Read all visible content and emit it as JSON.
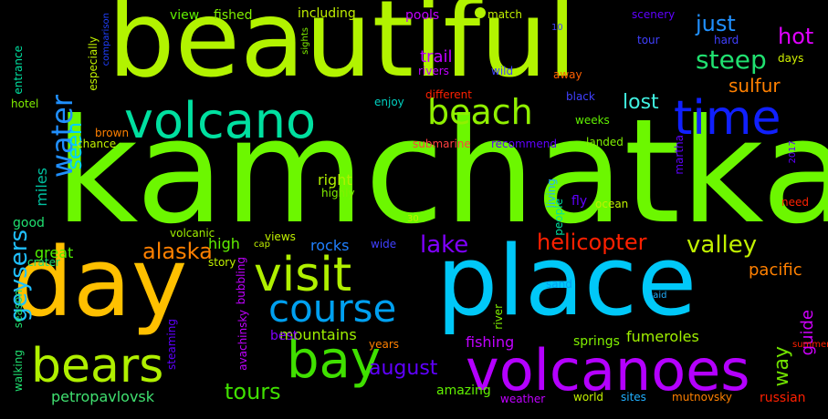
{
  "words": [
    {
      "text": "kamchatka",
      "color": "#6cf700"
    },
    {
      "text": "beautiful",
      "color": "#b2f300"
    },
    {
      "text": "place",
      "color": "#00c8f8"
    },
    {
      "text": "day",
      "color": "#ffc000"
    },
    {
      "text": "volcanoes",
      "color": "#b400ff"
    },
    {
      "text": "visit",
      "color": "#b0f000"
    },
    {
      "text": "volcano",
      "color": "#00e0a0"
    },
    {
      "text": "time",
      "color": "#1020ff"
    },
    {
      "text": "beach",
      "color": "#90f000"
    },
    {
      "text": "bay",
      "color": "#40e000"
    },
    {
      "text": "bears",
      "color": "#b0f000"
    },
    {
      "text": "course",
      "color": "#00a0f0"
    },
    {
      "text": "helicopter",
      "color": "#ff2000"
    },
    {
      "text": "valley",
      "color": "#c0f000"
    },
    {
      "text": "hot",
      "color": "#e000ff"
    },
    {
      "text": "steep",
      "color": "#20e070"
    },
    {
      "text": "just",
      "color": "#2090ff"
    },
    {
      "text": "sulfur",
      "color": "#ff8000"
    },
    {
      "text": "lost",
      "color": "#40f0e0"
    },
    {
      "text": "water",
      "color": "#2090ff"
    },
    {
      "text": "seen",
      "color": "#00d0ff"
    },
    {
      "text": "geysers",
      "color": "#20c0ff"
    },
    {
      "text": "alaska",
      "color": "#ff8000"
    },
    {
      "text": "lake",
      "color": "#8000ff"
    },
    {
      "text": "august",
      "color": "#6000ff"
    },
    {
      "text": "tours",
      "color": "#40e000"
    },
    {
      "text": "way",
      "color": "#70e000"
    },
    {
      "text": "guide",
      "color": "#d000ff"
    },
    {
      "text": "pacific",
      "color": "#ff8000"
    },
    {
      "text": "mountains",
      "color": "#a0f000"
    },
    {
      "text": "fumeroles",
      "color": "#a0f000"
    },
    {
      "text": "petropavlovsk",
      "color": "#40e070"
    },
    {
      "text": "fishing",
      "color": "#c000ff"
    },
    {
      "text": "trail",
      "color": "#c000ff"
    },
    {
      "text": "rocks",
      "color": "#2080ff"
    },
    {
      "text": "high",
      "color": "#60f000"
    },
    {
      "text": "great",
      "color": "#50f000"
    },
    {
      "text": "miles",
      "color": "#00c0a0"
    },
    {
      "text": "right",
      "color": "#b0f000"
    },
    {
      "text": "best",
      "color": "#8000ff"
    },
    {
      "text": "amazing",
      "color": "#60f000"
    },
    {
      "text": "springs",
      "color": "#80f000"
    },
    {
      "text": "including",
      "color": "#c0f000"
    },
    {
      "text": "fished",
      "color": "#80f000"
    },
    {
      "text": "view",
      "color": "#60f000"
    },
    {
      "text": "pools",
      "color": "#c000ff"
    },
    {
      "text": "match",
      "color": "#c0f000"
    },
    {
      "text": "scenery",
      "color": "#6000ff"
    },
    {
      "text": "tour",
      "color": "#4040ff"
    },
    {
      "text": "hard",
      "color": "#4040ff"
    },
    {
      "text": "days",
      "color": "#d0f000"
    },
    {
      "text": "rivers",
      "color": "#c000ff"
    },
    {
      "text": "wild",
      "color": "#4040ff"
    },
    {
      "text": "away",
      "color": "#ff6000"
    },
    {
      "text": "black",
      "color": "#4040ff"
    },
    {
      "text": "different",
      "color": "#ff2000"
    },
    {
      "text": "enjoy",
      "color": "#00d0c0"
    },
    {
      "text": "weeks",
      "color": "#60f000"
    },
    {
      "text": "brown",
      "color": "#ff8000"
    },
    {
      "text": "chance",
      "color": "#c0f000"
    },
    {
      "text": "submarine",
      "color": "#ff4040"
    },
    {
      "text": "recommend",
      "color": "#6000ff"
    },
    {
      "text": "landed",
      "color": "#80f000"
    },
    {
      "text": "martha",
      "color": "#6000ff"
    },
    {
      "text": "highly",
      "color": "#80f000"
    },
    {
      "text": "fly",
      "color": "#6000ff"
    },
    {
      "text": "ocean",
      "color": "#c0f000"
    },
    {
      "text": "need",
      "color": "#ff2000"
    },
    {
      "text": "good",
      "color": "#20e070"
    },
    {
      "text": "volcanic",
      "color": "#a0f000"
    },
    {
      "text": "views",
      "color": "#c0f000"
    },
    {
      "text": "cap",
      "color": "#c0f000"
    },
    {
      "text": "wide",
      "color": "#4040ff"
    },
    {
      "text": "people",
      "color": "#00e0a0"
    },
    {
      "text": "living",
      "color": "#20b0ff"
    },
    {
      "text": "sand",
      "color": "#00a0f0"
    },
    {
      "text": "crater",
      "color": "#20e070"
    },
    {
      "text": "story",
      "color": "#c0f000"
    },
    {
      "text": "bubbling",
      "color": "#c000ff"
    },
    {
      "text": "season",
      "color": "#20e070"
    },
    {
      "text": "avachinsky",
      "color": "#c000ff"
    },
    {
      "text": "steaming",
      "color": "#6000ff"
    },
    {
      "text": "walking",
      "color": "#20e070"
    },
    {
      "text": "years",
      "color": "#ff8000"
    },
    {
      "text": "weather",
      "color": "#c000ff"
    },
    {
      "text": "world",
      "color": "#c0f000"
    },
    {
      "text": "sites",
      "color": "#20b0ff"
    },
    {
      "text": "mutnovsky",
      "color": "#ff8000"
    },
    {
      "text": "russian",
      "color": "#ff2000"
    },
    {
      "text": "summer",
      "color": "#ff2000"
    },
    {
      "text": "said",
      "color": "#20b0ff"
    },
    {
      "text": "river",
      "color": "#80f000"
    },
    {
      "text": "hotel",
      "color": "#80f000"
    },
    {
      "text": "entrance",
      "color": "#00e0a0"
    },
    {
      "text": "especially",
      "color": "#c0f000"
    },
    {
      "text": "comparison",
      "color": "#2040ff"
    },
    {
      "text": "sights",
      "color": "#80f000"
    },
    {
      "text": "2017",
      "color": "#6000ff"
    },
    {
      "text": "10",
      "color": "#4040ff"
    },
    {
      "text": "30",
      "color": "#c0f000"
    }
  ]
}
